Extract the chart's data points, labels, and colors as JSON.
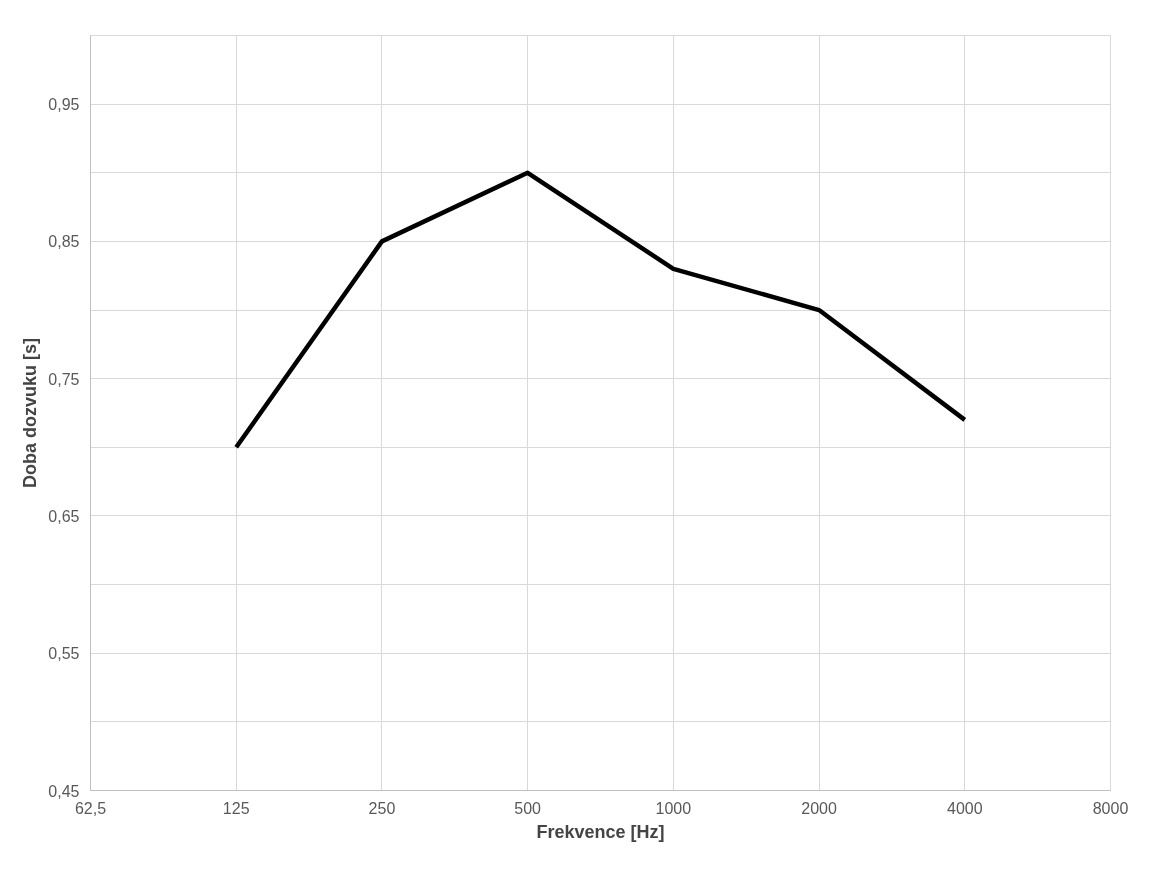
{
  "chart_data": {
    "type": "line",
    "xlabel": "Frekvence [Hz]",
    "ylabel": "Doba dozvuku [s]",
    "x": [
      125,
      250,
      500,
      1000,
      2000,
      4000
    ],
    "series": [
      {
        "color": "#000000",
        "values": [
          0.7,
          0.85,
          0.9,
          0.83,
          0.8,
          0.72
        ]
      }
    ],
    "log": "x",
    "xlim": [
      62.5,
      8000
    ],
    "xticks": [
      {
        "value": 62.5,
        "label": "62,5"
      },
      125,
      250,
      500,
      1000,
      2000,
      4000,
      8000
    ],
    "ylim": [
      0.45,
      1.0
    ],
    "yticks": [
      {
        "value": 0.45,
        "label": "0,45"
      },
      {
        "value": 0.5,
        "label": null
      },
      {
        "value": 0.55,
        "label": "0,55"
      },
      {
        "value": 0.6,
        "label": null
      },
      {
        "value": 0.65,
        "label": "0,65"
      },
      {
        "value": 0.7,
        "label": null
      },
      {
        "value": 0.75,
        "label": "0,75"
      },
      {
        "value": 0.8,
        "label": null
      },
      {
        "value": 0.85,
        "label": "0,85"
      },
      {
        "value": 0.9,
        "label": null
      },
      {
        "value": 0.95,
        "label": "0,95"
      },
      {
        "value": 1.0,
        "label": null
      }
    ],
    "grid": true,
    "marker": "none",
    "line_style": "solid"
  }
}
